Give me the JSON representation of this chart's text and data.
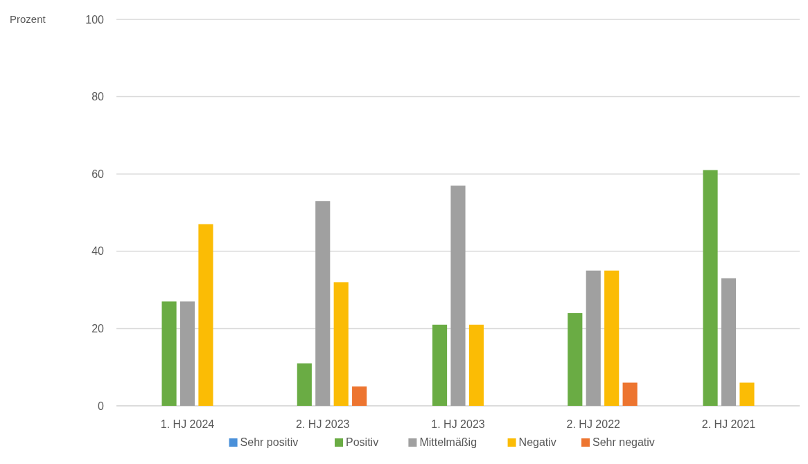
{
  "chart_data": {
    "type": "bar",
    "ylabel": "Prozent",
    "categories": [
      "1. HJ 2024",
      "2. HJ 2023",
      "1. HJ 2023",
      "2. HJ 2022",
      "2. HJ 2021"
    ],
    "series": [
      {
        "name": "Sehr positiv",
        "color": "#4a90d9",
        "values": [
          0,
          0,
          0,
          0,
          0
        ]
      },
      {
        "name": "Positiv",
        "color": "#6aac44",
        "values": [
          27,
          11,
          21,
          24,
          61
        ]
      },
      {
        "name": "Mittelmäßig",
        "color": "#a0a0a0",
        "values": [
          27,
          53,
          57,
          35,
          33
        ]
      },
      {
        "name": "Negativ",
        "color": "#fbbc05",
        "values": [
          47,
          32,
          21,
          35,
          6
        ]
      },
      {
        "name": "Sehr negativ",
        "color": "#ed7530",
        "values": [
          0,
          5,
          0,
          6,
          0
        ]
      }
    ],
    "ylim": [
      0,
      100
    ],
    "yticks": [
      0,
      20,
      40,
      60,
      80,
      100
    ],
    "grid": "y",
    "legend": "bottom"
  }
}
